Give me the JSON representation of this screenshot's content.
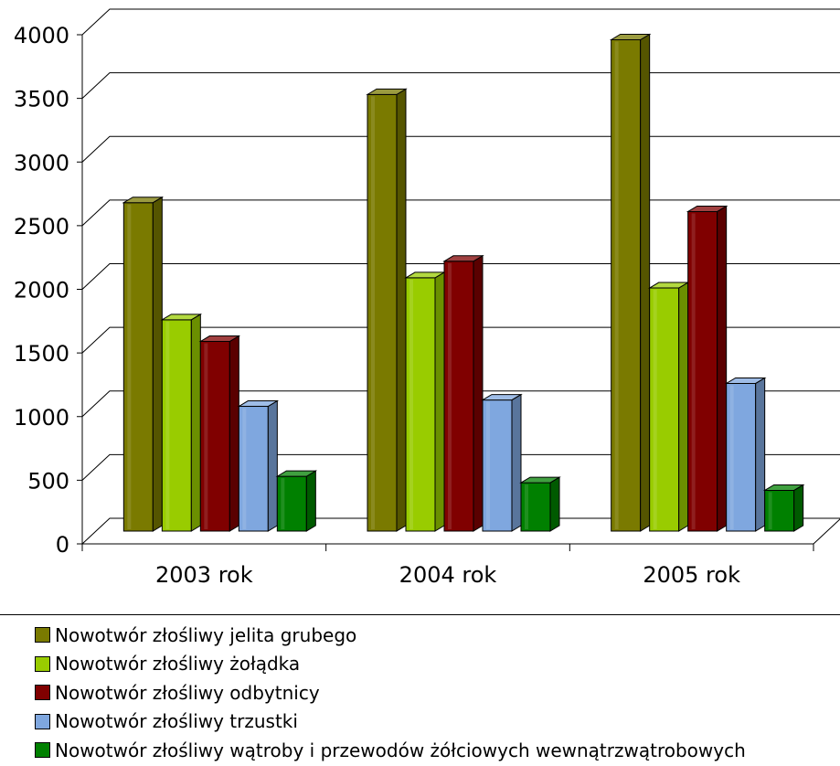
{
  "chart_data": {
    "type": "bar",
    "categories": [
      "2003 rok",
      "2004 rok",
      "2005 rok"
    ],
    "series": [
      {
        "name": "Nowotwór złośliwy jelita grubego",
        "color": "#7a7a00",
        "values": [
          2580,
          3430,
          3860
        ]
      },
      {
        "name": "Nowotwór złośliwy żołądka",
        "color": "#99cc00",
        "values": [
          1660,
          1990,
          1910
        ]
      },
      {
        "name": "Nowotwór złośliwy odbytnicy",
        "color": "#800000",
        "values": [
          1490,
          2120,
          2510
        ]
      },
      {
        "name": "Nowotwór złośliwy trzustki",
        "color": "#7fa7df",
        "values": [
          980,
          1030,
          1160
        ]
      },
      {
        "name": "Nowotwór złośliwy wątroby i przewodów żółciowych wewnątrzwątrobowych",
        "color": "#008000",
        "values": [
          430,
          380,
          320
        ]
      }
    ],
    "y_ticks": [
      "0",
      "500",
      "1000",
      "1500",
      "2000",
      "2500",
      "3000",
      "3500",
      "4000"
    ],
    "ylim": [
      0,
      4000
    ],
    "grid": true,
    "legend_position": "bottom",
    "style": "3d-bar"
  }
}
